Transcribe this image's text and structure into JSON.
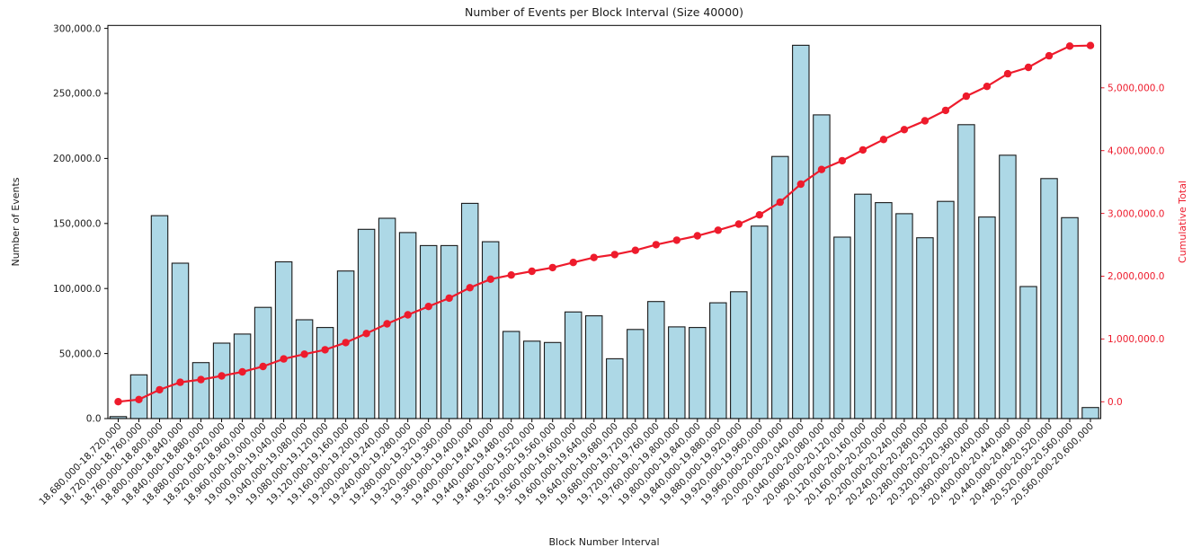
{
  "chart_data": {
    "type": "bar+line",
    "title": "Number of Events per Block Interval (Size 40000)",
    "xlabel": "Block Number Interval",
    "ylabel_left": "Number of Events",
    "ylabel_right": "Cumulative Total",
    "legend_position": "none",
    "grid": false,
    "bar_color": "#add8e6",
    "bar_edge_color": "#1a1a1a",
    "line_color": "#ee1b2c",
    "axis_text_color": "#1a1a1a",
    "categories": [
      "18,680,000-18,720,000",
      "18,720,000-18,760,000",
      "18,760,000-18,800,000",
      "18,800,000-18,840,000",
      "18,840,000-18,880,000",
      "18,880,000-18,920,000",
      "18,920,000-18,960,000",
      "18,960,000-19,000,000",
      "19,000,000-19,040,000",
      "19,040,000-19,080,000",
      "19,080,000-19,120,000",
      "19,120,000-19,160,000",
      "19,160,000-19,200,000",
      "19,200,000-19,240,000",
      "19,240,000-19,280,000",
      "19,280,000-19,320,000",
      "19,320,000-19,360,000",
      "19,360,000-19,400,000",
      "19,400,000-19,440,000",
      "19,440,000-19,480,000",
      "19,480,000-19,520,000",
      "19,520,000-19,560,000",
      "19,560,000-19,600,000",
      "19,600,000-19,640,000",
      "19,640,000-19,680,000",
      "19,680,000-19,720,000",
      "19,720,000-19,760,000",
      "19,760,000-19,800,000",
      "19,800,000-19,840,000",
      "19,840,000-19,880,000",
      "19,880,000-19,920,000",
      "19,920,000-19,960,000",
      "19,960,000-20,000,000",
      "20,000,000-20,040,000",
      "20,040,000-20,080,000",
      "20,080,000-20,120,000",
      "20,120,000-20,160,000",
      "20,160,000-20,200,000",
      "20,200,000-20,240,000",
      "20,240,000-20,280,000",
      "20,280,000-20,320,000",
      "20,320,000-20,360,000",
      "20,360,000-20,400,000",
      "20,400,000-20,440,000",
      "20,440,000-20,480,000",
      "20,480,000-20,520,000",
      "20,520,000-20,560,000",
      "20,560,000-20,600,000"
    ],
    "series": [
      {
        "name": "Number of Events",
        "type": "bar",
        "axis": "left",
        "values": [
          1500,
          33600,
          156000,
          119500,
          43000,
          58000,
          65000,
          85500,
          120500,
          76000,
          70000,
          113500,
          145500,
          154000,
          143000,
          133000,
          133000,
          165500,
          136000,
          67000,
          59500,
          58500,
          82000,
          79000,
          46000,
          68500,
          90000,
          70500,
          70000,
          89000,
          97500,
          148000,
          201500,
          287000,
          233500,
          139500,
          172500,
          166000,
          157500,
          139000,
          167000,
          226000,
          155000,
          202500,
          101500,
          184500,
          154500,
          8500
        ]
      },
      {
        "name": "Cumulative Total",
        "type": "line",
        "axis": "right",
        "values": [
          1500,
          35100,
          191100,
          310600,
          353600,
          411600,
          476600,
          562100,
          682600,
          758600,
          828600,
          942100,
          1087600,
          1241600,
          1384600,
          1517600,
          1650600,
          1816100,
          1952100,
          2019100,
          2078600,
          2137100,
          2219100,
          2298100,
          2344100,
          2412600,
          2502600,
          2573100,
          2643100,
          2732100,
          2829600,
          2977600,
          3179100,
          3466100,
          3699600,
          3839100,
          4011600,
          4177600,
          4335100,
          4474100,
          4641100,
          4867100,
          5022100,
          5224600,
          5326100,
          5510600,
          5665100,
          5673600
        ]
      }
    ],
    "left_axis": {
      "range": [
        0,
        302280
      ],
      "ticks": [
        {
          "value": 0,
          "label": "0.0"
        },
        {
          "value": 50000,
          "label": "50,000.0"
        },
        {
          "value": 100000,
          "label": "100,000.0"
        },
        {
          "value": 150000,
          "label": "150,000.0"
        },
        {
          "value": 200000,
          "label": "200,000.0"
        },
        {
          "value": 250000,
          "label": "250,000.0"
        },
        {
          "value": 300000,
          "label": "300,000.0"
        }
      ]
    },
    "right_axis": {
      "range": [
        -267500,
        5994000
      ],
      "ticks": [
        {
          "value": 0,
          "label": "0.0"
        },
        {
          "value": 1000000,
          "label": "1,000,000.0"
        },
        {
          "value": 2000000,
          "label": "2,000,000.0"
        },
        {
          "value": 3000000,
          "label": "3,000,000.0"
        },
        {
          "value": 4000000,
          "label": "4,000,000.0"
        },
        {
          "value": 5000000,
          "label": "5,000,000.0"
        }
      ]
    }
  }
}
